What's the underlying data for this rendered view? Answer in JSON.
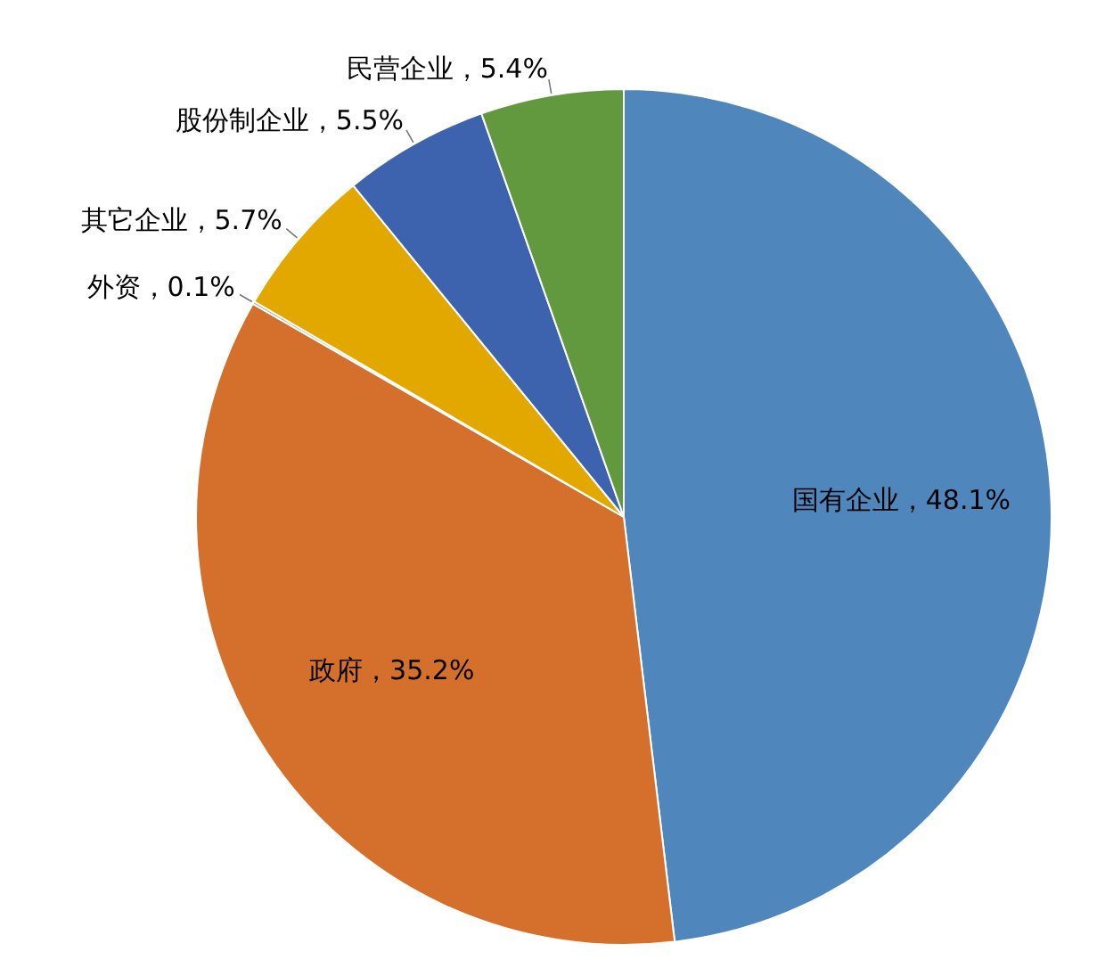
{
  "chart_data": {
    "type": "pie",
    "categories": [
      "国有企业",
      "政府",
      "外资",
      "其它企业",
      "股份制企业",
      "民营企业"
    ],
    "values": [
      48.1,
      35.2,
      0.1,
      5.7,
      5.5,
      5.4
    ],
    "colors": [
      "#4f87bd",
      "#d4702b",
      "#a5a5a5",
      "#e3a800",
      "#3e63ae",
      "#62993f"
    ],
    "value_labels": [
      "，48.1%",
      "，35.2%",
      "，0.1%",
      "，5.7%",
      "，5.5%",
      "，5.4%"
    ]
  }
}
